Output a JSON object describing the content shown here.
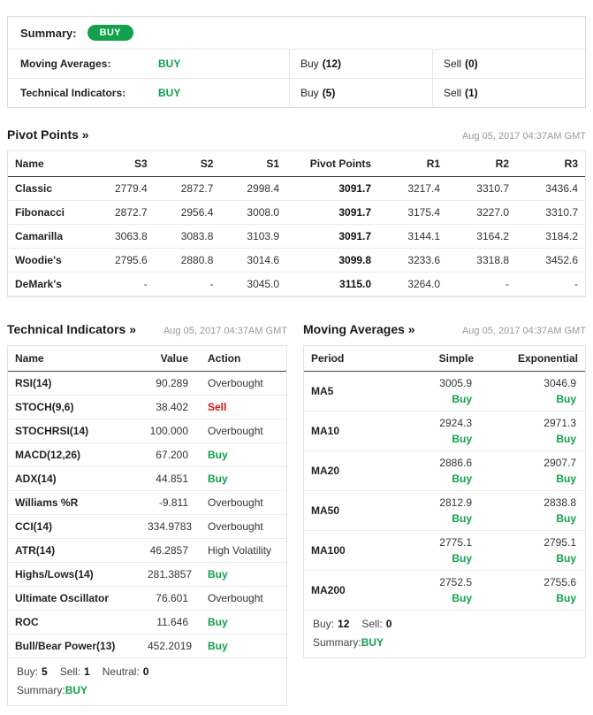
{
  "colors": {
    "buy_green": "#11a04b",
    "sell_red": "#dd0e0e"
  },
  "summary_box": {
    "title": "Summary:",
    "badge": "BUY",
    "rows": [
      {
        "label": "Moving Averages:",
        "signal": "BUY",
        "buy_text": "Buy",
        "buy_count": "(12)",
        "sell_text": "Sell",
        "sell_count": "(0)"
      },
      {
        "label": "Technical Indicators:",
        "signal": "BUY",
        "buy_text": "Buy",
        "buy_count": "(5)",
        "sell_text": "Sell",
        "sell_count": "(1)"
      }
    ]
  },
  "pivot_points": {
    "title": "Pivot Points",
    "arrow": "»",
    "timestamp": "Aug 05, 2017 04:37AM GMT",
    "headers": [
      "Name",
      "S3",
      "S2",
      "S1",
      "Pivot Points",
      "R1",
      "R2",
      "R3"
    ],
    "rows": [
      {
        "name": "Classic",
        "values": [
          "2779.4",
          "2872.7",
          "2998.4",
          "3091.7",
          "3217.4",
          "3310.7",
          "3436.4"
        ]
      },
      {
        "name": "Fibonacci",
        "values": [
          "2872.7",
          "2956.4",
          "3008.0",
          "3091.7",
          "3175.4",
          "3227.0",
          "3310.7"
        ]
      },
      {
        "name": "Camarilla",
        "values": [
          "3063.8",
          "3083.8",
          "3103.9",
          "3091.7",
          "3144.1",
          "3164.2",
          "3184.2"
        ]
      },
      {
        "name": "Woodie's",
        "values": [
          "2795.6",
          "2880.8",
          "3014.6",
          "3099.8",
          "3233.6",
          "3318.8",
          "3452.6"
        ]
      },
      {
        "name": "DeMark's",
        "values": [
          "-",
          "-",
          "3045.0",
          "3115.0",
          "3264.0",
          "-",
          "-"
        ]
      }
    ]
  },
  "technical_indicators": {
    "title": "Technical Indicators",
    "arrow": "»",
    "timestamp": "Aug 05, 2017 04:37AM GMT",
    "headers": [
      "Name",
      "Value",
      "Action"
    ],
    "rows": [
      {
        "name": "RSI(14)",
        "value": "90.289",
        "action": "Overbought",
        "action_type": "neutral"
      },
      {
        "name": "STOCH(9,6)",
        "value": "38.402",
        "action": "Sell",
        "action_type": "sell"
      },
      {
        "name": "STOCHRSI(14)",
        "value": "100.000",
        "action": "Overbought",
        "action_type": "neutral"
      },
      {
        "name": "MACD(12,26)",
        "value": "67.200",
        "action": "Buy",
        "action_type": "buy"
      },
      {
        "name": "ADX(14)",
        "value": "44.851",
        "action": "Buy",
        "action_type": "buy"
      },
      {
        "name": "Williams %R",
        "value": "-9.811",
        "action": "Overbought",
        "action_type": "neutral"
      },
      {
        "name": "CCI(14)",
        "value": "334.9783",
        "action": "Overbought",
        "action_type": "neutral"
      },
      {
        "name": "ATR(14)",
        "value": "46.2857",
        "action": "High Volatility",
        "action_type": "neutral"
      },
      {
        "name": "Highs/Lows(14)",
        "value": "281.3857",
        "action": "Buy",
        "action_type": "buy"
      },
      {
        "name": "Ultimate Oscillator",
        "value": "76.601",
        "action": "Overbought",
        "action_type": "neutral"
      },
      {
        "name": "ROC",
        "value": "11.646",
        "action": "Buy",
        "action_type": "buy"
      },
      {
        "name": "Bull/Bear Power(13)",
        "value": "452.2019",
        "action": "Buy",
        "action_type": "buy"
      }
    ],
    "footer": {
      "buy_label": "Buy:",
      "buy_count": "5",
      "sell_label": "Sell:",
      "sell_count": "1",
      "neutral_label": "Neutral:",
      "neutral_count": "0",
      "summary_label": "Summary:",
      "summary_value": "BUY"
    }
  },
  "moving_averages": {
    "title": "Moving Averages",
    "arrow": "»",
    "timestamp": "Aug 05, 2017 04:37AM GMT",
    "headers": [
      "Period",
      "Simple",
      "Exponential"
    ],
    "rows": [
      {
        "period": "MA5",
        "simple": "3005.9",
        "simple_action": "Buy",
        "exponential": "3046.9",
        "exponential_action": "Buy"
      },
      {
        "period": "MA10",
        "simple": "2924.3",
        "simple_action": "Buy",
        "exponential": "2971.3",
        "exponential_action": "Buy"
      },
      {
        "period": "MA20",
        "simple": "2886.6",
        "simple_action": "Buy",
        "exponential": "2907.7",
        "exponential_action": "Buy"
      },
      {
        "period": "MA50",
        "simple": "2812.9",
        "simple_action": "Buy",
        "exponential": "2838.8",
        "exponential_action": "Buy"
      },
      {
        "period": "MA100",
        "simple": "2775.1",
        "simple_action": "Buy",
        "exponential": "2795.1",
        "exponential_action": "Buy"
      },
      {
        "period": "MA200",
        "simple": "2752.5",
        "simple_action": "Buy",
        "exponential": "2755.6",
        "exponential_action": "Buy"
      }
    ],
    "footer": {
      "buy_label": "Buy:",
      "buy_count": "12",
      "sell_label": "Sell:",
      "sell_count": "0",
      "summary_label": "Summary:",
      "summary_value": "BUY"
    }
  }
}
